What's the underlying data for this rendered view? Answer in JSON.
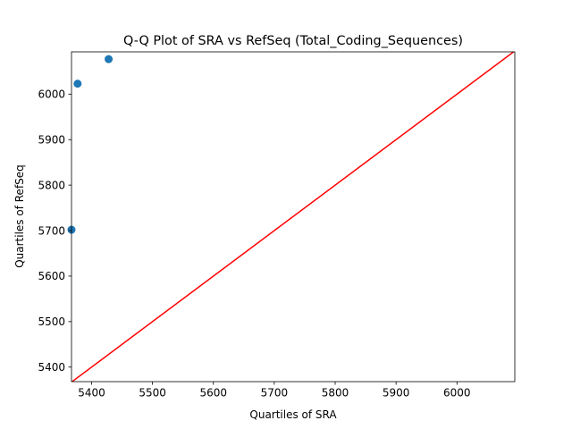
{
  "chart_data": {
    "type": "scatter",
    "title": "Q-Q Plot of SRA vs RefSeq (Total_Coding_Sequences)",
    "xlabel": "Quartiles of SRA",
    "ylabel": "Quartiles of RefSeq",
    "xlim": [
      5367,
      6095
    ],
    "ylim": [
      5368,
      6093
    ],
    "xticks": [
      5400,
      5500,
      5600,
      5700,
      5800,
      5900,
      6000
    ],
    "yticks": [
      5400,
      5500,
      5600,
      5700,
      5800,
      5900,
      6000
    ],
    "points": [
      {
        "x": 5367,
        "y": 5702
      },
      {
        "x": 5377,
        "y": 6023
      },
      {
        "x": 5428,
        "y": 6077
      }
    ],
    "reference_line": {
      "from": [
        5367,
        5367
      ],
      "to": [
        6095,
        6095
      ],
      "color": "#ff0000"
    },
    "point_color": "#1f77b4",
    "grid": false,
    "legend": "none"
  }
}
